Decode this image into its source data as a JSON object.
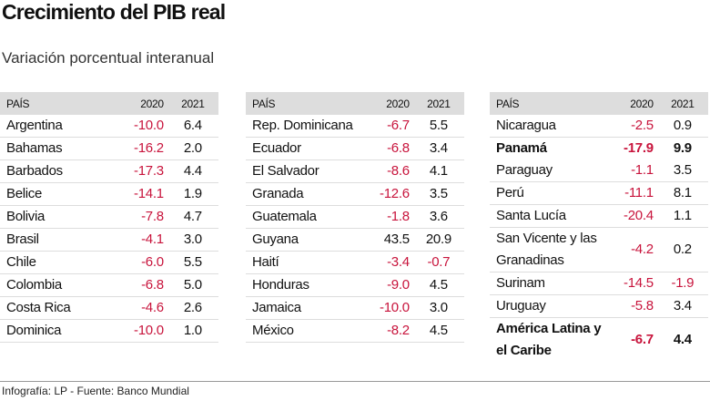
{
  "header": {
    "title": "Crecimiento del PIB real",
    "subtitle": "Variación porcentual interanual"
  },
  "tables": [
    {
      "columns": [
        "PAÍS",
        "2020",
        "2021"
      ],
      "rows": [
        {
          "cells": [
            "Argentina",
            "-10.0",
            "6.4"
          ]
        },
        {
          "cells": [
            "Bahamas",
            "-16.2",
            "2.0"
          ]
        },
        {
          "cells": [
            "Barbados",
            "-17.3",
            "4.4"
          ]
        },
        {
          "cells": [
            "Belice",
            "-14.1",
            "1.9"
          ]
        },
        {
          "cells": [
            "Bolivia",
            "-7.8",
            "4.7"
          ]
        },
        {
          "cells": [
            "Brasil",
            "-4.1",
            "3.0"
          ]
        },
        {
          "cells": [
            "Chile",
            "-6.0",
            "5.5"
          ]
        },
        {
          "cells": [
            "Colombia",
            "-6.8",
            "5.0"
          ]
        },
        {
          "cells": [
            "Costa Rica",
            "-4.6",
            "2.6"
          ]
        },
        {
          "cells": [
            "Dominica",
            "-10.0",
            "1.0"
          ]
        }
      ]
    },
    {
      "columns": [
        "PAÍS",
        "2020",
        "2021"
      ],
      "rows": [
        {
          "cells": [
            "Rep. Dominicana",
            "-6.7",
            "5.5"
          ]
        },
        {
          "cells": [
            "Ecuador",
            "-6.8",
            "3.4"
          ]
        },
        {
          "cells": [
            "El Salvador",
            "-8.6",
            "4.1"
          ]
        },
        {
          "cells": [
            "Granada",
            "-12.6",
            "3.5"
          ]
        },
        {
          "cells": [
            "Guatemala",
            "-1.8",
            "3.6"
          ]
        },
        {
          "cells": [
            "Guyana",
            "43.5",
            "20.9"
          ]
        },
        {
          "cells": [
            "Haití",
            "-3.4",
            "-0.7"
          ]
        },
        {
          "cells": [
            "Honduras",
            "-9.0",
            "4.5"
          ]
        },
        {
          "cells": [
            "Jamaica",
            "-10.0",
            "3.0"
          ]
        },
        {
          "cells": [
            "México",
            "-8.2",
            "4.5"
          ]
        }
      ]
    },
    {
      "columns": [
        "PAÍS",
        "2020",
        "2021"
      ],
      "rows": [
        {
          "cells": [
            "Nicaragua",
            "-2.5",
            "0.9"
          ]
        },
        {
          "cells": [
            "Panamá",
            "-17.9",
            "9.9"
          ],
          "bold": true
        },
        {
          "cells": [
            "Paraguay",
            "-1.1",
            "3.5"
          ]
        },
        {
          "cells": [
            "Perú",
            "-11.1",
            "8.1"
          ]
        },
        {
          "cells": [
            "Santa Lucía",
            "-20.4",
            "1.1"
          ]
        },
        {
          "cells": [
            "San Vicente y las Granadinas",
            "-4.2",
            "0.2"
          ]
        },
        {
          "cells": [
            "Surinam",
            "-14.5",
            "-1.9"
          ]
        },
        {
          "cells": [
            "Uruguay",
            "-5.8",
            "3.4"
          ]
        },
        {
          "cells": [
            "América Latina y el Caribe",
            "-6.7",
            "4.4"
          ],
          "bold": true
        }
      ]
    }
  ],
  "footer": {
    "source": "Infografía: LP - Fuente: Banco Mundial"
  }
}
